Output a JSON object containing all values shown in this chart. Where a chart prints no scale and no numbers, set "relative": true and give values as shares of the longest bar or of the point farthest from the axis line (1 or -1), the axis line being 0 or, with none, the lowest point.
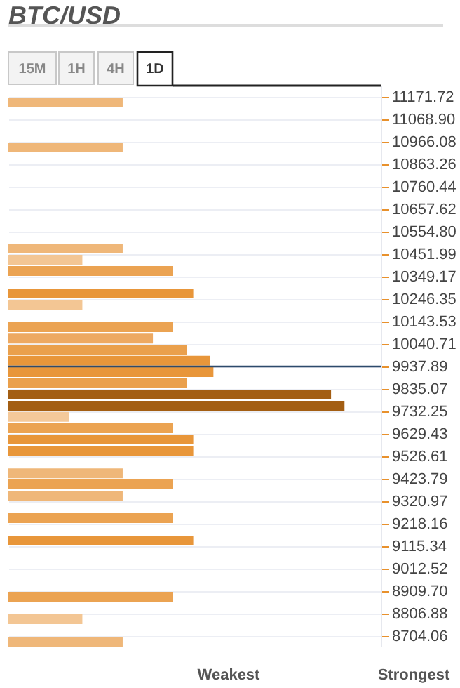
{
  "chart_data": {
    "type": "bar",
    "title": "BTC/USD",
    "orientation": "horizontal",
    "relative": true,
    "x": [
      11146,
      10940,
      10478,
      10426,
      10375,
      10272,
      10221,
      10118,
      10066,
      10015,
      9964,
      9912,
      9861,
      9809,
      9758,
      9707,
      9655,
      9604,
      9552,
      9449,
      9398,
      9347,
      9244,
      9141,
      8884,
      8781,
      8678
    ],
    "values": [
      0.34,
      0.34,
      0.34,
      0.22,
      0.49,
      0.55,
      0.22,
      0.49,
      0.43,
      0.53,
      0.6,
      0.61,
      0.53,
      0.96,
      1,
      0.18,
      0.49,
      0.55,
      0.55,
      0.34,
      0.49,
      0.34,
      0.49,
      0.55,
      0.49,
      0.22,
      0.34
    ],
    "colors": [
      "#efb779",
      "#efb779",
      "#efb779",
      "#f3c694",
      "#eba352",
      "#e8963a",
      "#f3c694",
      "#eba352",
      "#eda962",
      "#eaa04c",
      "#e8963a",
      "#e8963a",
      "#eaa04c",
      "#a35e13",
      "#a35e13",
      "#f4c99a",
      "#eba352",
      "#e8963a",
      "#e8963a",
      "#efb779",
      "#eba352",
      "#efb779",
      "#eba352",
      "#e8963a",
      "#eba352",
      "#f3c694",
      "#efb779"
    ],
    "ylim": [
      8652.65,
      11223.13
    ],
    "yticks": [
      11171.72,
      {
        "value": 11068.9,
        "label": "11068.90"
      },
      10966.08,
      10863.26,
      10760.44,
      10657.62,
      {
        "value": 10554.8,
        "label": "10554.80"
      },
      10451.99,
      10349.17,
      10246.35,
      10143.53,
      10040.71,
      9937.89,
      9835.07,
      9732.25,
      9629.43,
      9526.61,
      9423.79,
      9320.97,
      9218.16,
      9115.34,
      9012.52,
      {
        "value": 8909.7,
        "label": "8909.70"
      },
      8806.88,
      8704.06
    ],
    "ref_lines": [
      {
        "axis": "y",
        "value": 9937.89,
        "color": "#2d4a6b"
      }
    ],
    "grid": "y",
    "annotations": [
      "15M",
      "1H",
      "4H",
      "1D",
      "Weakest",
      "Strongest"
    ]
  }
}
